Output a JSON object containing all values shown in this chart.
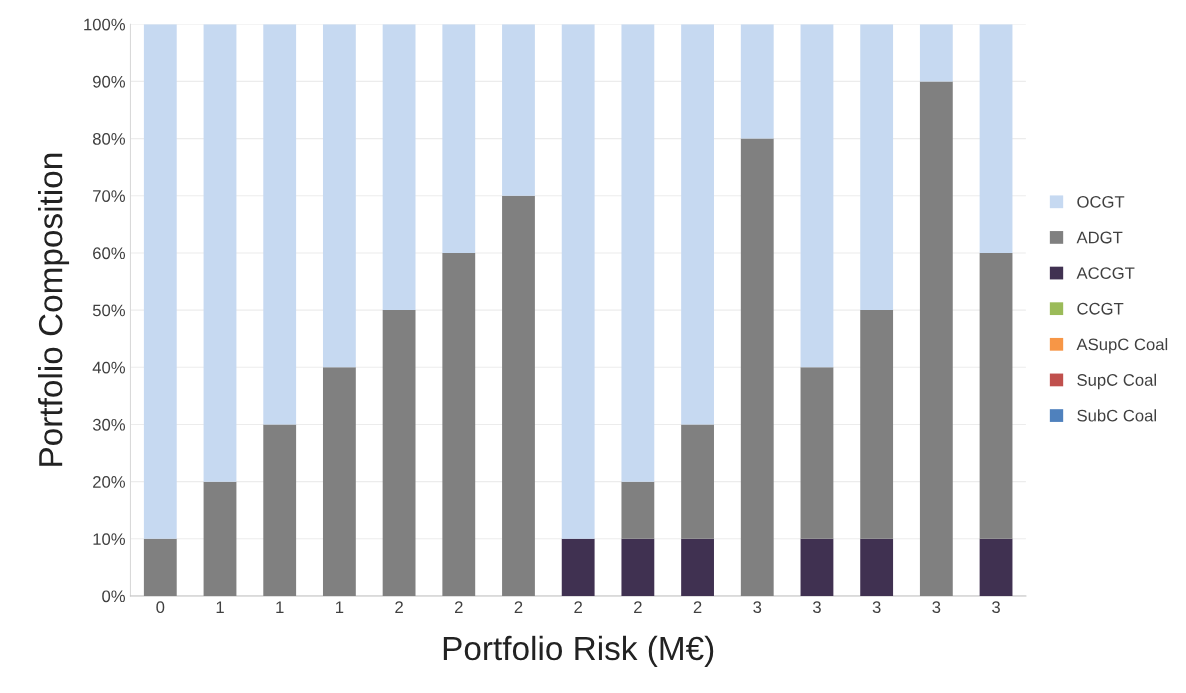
{
  "chart_data": {
    "type": "bar",
    "stacked": true,
    "xlabel": "Portfolio Risk (M€)",
    "ylabel": "Portfolio Composition",
    "categories": [
      "0",
      "1",
      "1",
      "1",
      "2",
      "2",
      "2",
      "2",
      "2",
      "2",
      "3",
      "3",
      "3",
      "3",
      "3"
    ],
    "series": [
      {
        "name": "SubC Coal",
        "color": "#4f81bd",
        "values": [
          0,
          0,
          0,
          0,
          0,
          0,
          0,
          0,
          0,
          0,
          0,
          0,
          0,
          0,
          0
        ]
      },
      {
        "name": "SupC Coal",
        "color": "#c0504d",
        "values": [
          0,
          0,
          0,
          0,
          0,
          0,
          0,
          0,
          0,
          0,
          0,
          0,
          0,
          0,
          0
        ]
      },
      {
        "name": "ASupC Coal",
        "color": "#f79646",
        "values": [
          0,
          0,
          0,
          0,
          0,
          0,
          0,
          0,
          0,
          0,
          0,
          0,
          0,
          0,
          0
        ]
      },
      {
        "name": "CCGT",
        "color": "#9bbb59",
        "values": [
          0,
          0,
          0,
          0,
          0,
          0,
          0,
          0,
          0,
          0,
          0,
          0,
          0,
          0,
          0
        ]
      },
      {
        "name": "ACCGT",
        "color": "#403151",
        "values": [
          0,
          0,
          0,
          0,
          0,
          0,
          0,
          10,
          10,
          10,
          0,
          10,
          10,
          0,
          10
        ]
      },
      {
        "name": "ADGT",
        "color": "#808080",
        "values": [
          10,
          20,
          30,
          40,
          50,
          60,
          70,
          0,
          10,
          20,
          80,
          30,
          40,
          90,
          50
        ]
      },
      {
        "name": "OCGT",
        "color": "#c6d9f1",
        "values": [
          90,
          80,
          70,
          60,
          50,
          40,
          30,
          90,
          80,
          70,
          20,
          60,
          50,
          10,
          40
        ]
      }
    ],
    "ylim": [
      0,
      100
    ],
    "yticks": [
      {
        "value": 0,
        "label": "0%"
      },
      {
        "value": 10,
        "label": "10%"
      },
      {
        "value": 20,
        "label": "20%"
      },
      {
        "value": 30,
        "label": "30%"
      },
      {
        "value": 40,
        "label": "40%"
      },
      {
        "value": 50,
        "label": "50%"
      },
      {
        "value": 60,
        "label": "60%"
      },
      {
        "value": 70,
        "label": "70%"
      },
      {
        "value": 80,
        "label": "80%"
      },
      {
        "value": 90,
        "label": "90%"
      },
      {
        "value": 100,
        "label": "100%"
      }
    ],
    "grid": "y",
    "legend": "right"
  }
}
